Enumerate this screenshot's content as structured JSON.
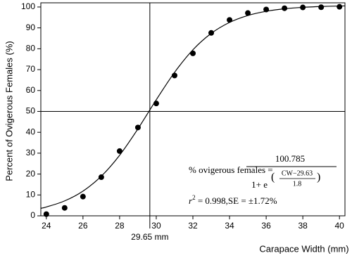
{
  "chart_data": {
    "type": "scatter",
    "x_label": "Carapace Width (mm)",
    "y_label": "Percent of Ovigerous Females (%)",
    "x": [
      24,
      25,
      26,
      27,
      28,
      29,
      30,
      31,
      32,
      33,
      34,
      35,
      36,
      37,
      38,
      39,
      40
    ],
    "values": [
      0.8,
      3.8,
      9.2,
      18.5,
      31,
      42.3,
      53.8,
      67.2,
      77.8,
      87.6,
      93.8,
      97.1,
      98.8,
      99.4,
      99.8,
      99.9,
      100.1
    ],
    "color": "#000000",
    "fit": {
      "x": [
        23.7,
        24,
        25,
        26,
        27,
        28,
        29,
        30,
        31,
        32,
        33,
        34,
        35,
        36,
        37,
        38,
        39,
        40,
        40.3
      ],
      "values": [
        3.61,
        4.22,
        7.15,
        11.84,
        18.98,
        29.01,
        41.66,
        55.56,
        68.7,
        79.49,
        87.35,
        92.61,
        95.93,
        97.94,
        99.13,
        99.83,
        100.23,
        100.47,
        100.5
      ]
    },
    "reference_lines": {
      "x": 29.65,
      "x_label": "29.65 mm",
      "y": 50
    },
    "equation": {
      "lhs": "% ovigerous females =",
      "numerator": "100.785",
      "denominator": "1+ e",
      "exponent_numerator": "CW−29.63",
      "exponent_denominator": "1.8",
      "stats_r": "r",
      "stats_power": "2",
      "stats_rest": " = 0.998,SE = ±1.72%"
    },
    "xlim": [
      23.7,
      40.3
    ],
    "ylim": [
      0,
      102
    ],
    "xticks": [
      24,
      26,
      28,
      30,
      32,
      34,
      36,
      38,
      40
    ],
    "yticks": [
      0,
      10,
      20,
      30,
      40,
      50,
      60,
      70,
      80,
      90,
      100
    ]
  }
}
